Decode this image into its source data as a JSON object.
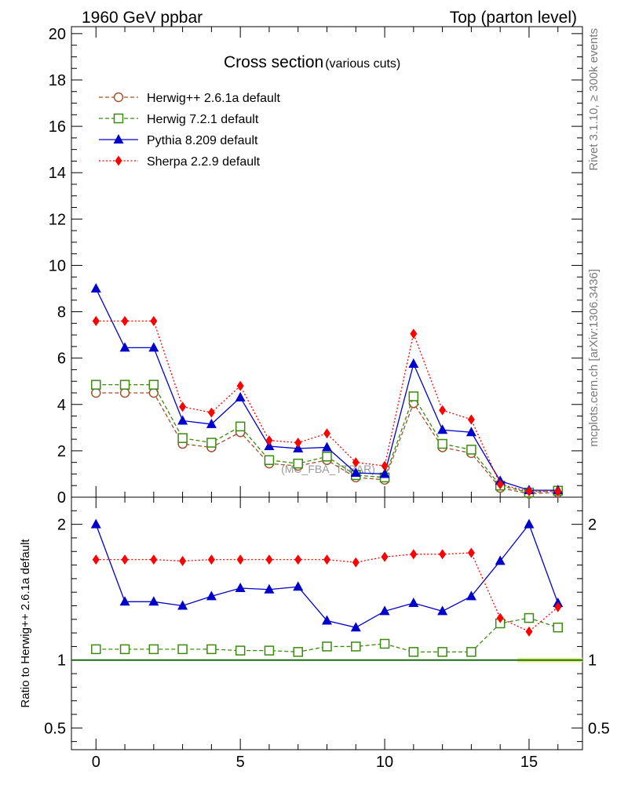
{
  "header": {
    "left": "1960 GeV ppbar",
    "right": "Top (parton level)"
  },
  "side_labels": {
    "rivet": "Rivet 3.1.10, ≥ 300k events",
    "mcplots": "mcplots.cern.ch [arXiv:1306.3436]"
  },
  "watermark": "(MC_FBA_TTBAR)",
  "chart_data": {
    "type": "line",
    "title": "Cross section",
    "subtitle": "(various cuts)",
    "xlim": [
      -0.85,
      16.85
    ],
    "x_ticks": [
      0,
      5,
      10,
      15
    ],
    "main": {
      "ylim": [
        0,
        20.3
      ],
      "y_ticks": [
        0,
        2,
        4,
        6,
        8,
        10,
        12,
        14,
        16,
        18,
        20
      ]
    },
    "ratio": {
      "ylabel": "Ratio to Herwig++ 2.6.1a default",
      "ylim": [
        0.34,
        2.2
      ],
      "y_ticks": [
        0.5,
        1,
        2
      ],
      "y_tick_labels": [
        "0.5",
        "1",
        "2"
      ]
    },
    "x": [
      0,
      1,
      2,
      3,
      4,
      5,
      6,
      7,
      8,
      9,
      10,
      11,
      12,
      13,
      14,
      15,
      16
    ],
    "series": [
      {
        "name": "Herwig++ 2.6.1a default",
        "color": "#a0522d",
        "marker": "circle-open",
        "line": "dashed",
        "values": [
          4.5,
          4.5,
          4.5,
          2.3,
          2.15,
          2.8,
          1.45,
          1.35,
          1.6,
          0.85,
          0.75,
          4.05,
          2.15,
          1.9,
          0.4,
          0.15,
          0.2
        ],
        "ratio": [
          1.0,
          1.0,
          1.0,
          1.0,
          1.0,
          1.0,
          1.0,
          1.0,
          1.0,
          1.0,
          1.0,
          1.0,
          1.0,
          1.0,
          1.0,
          1.0,
          1.0
        ]
      },
      {
        "name": "Herwig 7.2.1 default",
        "color": "#3a8a10",
        "marker": "square-open",
        "line": "dashed",
        "values": [
          4.85,
          4.85,
          4.85,
          2.55,
          2.35,
          3.05,
          1.6,
          1.45,
          1.75,
          0.95,
          0.85,
          4.35,
          2.3,
          2.05,
          0.5,
          0.2,
          0.28
        ],
        "ratio": [
          1.08,
          1.08,
          1.08,
          1.08,
          1.08,
          1.07,
          1.07,
          1.06,
          1.1,
          1.1,
          1.12,
          1.06,
          1.06,
          1.06,
          1.27,
          1.31,
          1.24
        ]
      },
      {
        "name": "Pythia 8.209 default",
        "color": "#0000cc",
        "marker": "triangle-filled",
        "line": "solid",
        "values": [
          9.0,
          6.45,
          6.45,
          3.3,
          3.15,
          4.3,
          2.2,
          2.1,
          2.15,
          1.05,
          1.0,
          5.75,
          2.9,
          2.8,
          0.7,
          0.3,
          0.3
        ],
        "ratio": [
          2.0,
          1.43,
          1.43,
          1.4,
          1.47,
          1.53,
          1.52,
          1.54,
          1.29,
          1.24,
          1.36,
          1.42,
          1.36,
          1.47,
          1.73,
          2.0,
          1.42
        ]
      },
      {
        "name": "Sherpa 2.2.9 default",
        "color": "#ff0000",
        "marker": "diamond-filled",
        "line": "dotted",
        "values": [
          7.6,
          7.6,
          7.6,
          3.9,
          3.65,
          4.8,
          2.45,
          2.35,
          2.75,
          1.5,
          1.35,
          7.05,
          3.75,
          3.35,
          0.55,
          0.25,
          0.25
        ],
        "ratio": [
          1.74,
          1.74,
          1.74,
          1.73,
          1.74,
          1.74,
          1.74,
          1.74,
          1.74,
          1.72,
          1.76,
          1.78,
          1.78,
          1.79,
          1.31,
          1.21,
          1.39
        ]
      }
    ]
  }
}
